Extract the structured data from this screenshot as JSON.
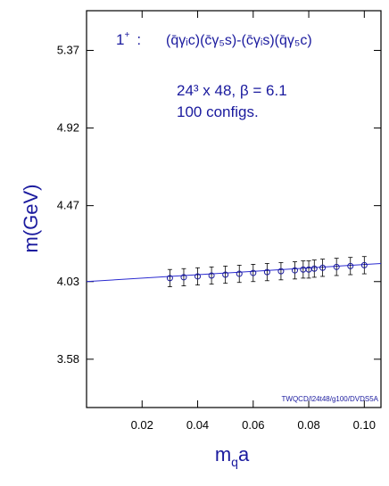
{
  "chart_data": {
    "type": "scatter",
    "title": "",
    "xlabel": "m",
    "xlabel_sub": "q",
    "xlabel_tail": "a",
    "ylabel": "m(GeV)",
    "xlim": [
      0.0,
      0.106
    ],
    "ylim": [
      3.3,
      5.6
    ],
    "x_ticks": [
      0.02,
      0.04,
      0.06,
      0.08,
      0.1
    ],
    "x_tick_labels": [
      "0.02",
      "0.04",
      "0.06",
      "0.08",
      "0.10"
    ],
    "y_ticks": [
      3.58,
      4.03,
      4.47,
      4.92,
      5.37
    ],
    "y_tick_labels": [
      "3.58",
      "4.03",
      "4.47",
      "4.92",
      "5.37"
    ],
    "annotations": {
      "state": "1",
      "state_sup": "+",
      "state_colon": ":",
      "operator": "(q̄γᵢc)(c̄γ₅s)-(c̄γᵢs)(q̄γ₅c)",
      "lattice_line": "24³ x 48, β = 6.1",
      "configs_line": "100 configs.",
      "credit": "TWQCD/l24t48/g100/DVDS5A"
    },
    "series": [
      {
        "x": [
          0.03,
          0.035,
          0.04,
          0.045,
          0.05,
          0.055,
          0.06,
          0.065,
          0.07,
          0.075,
          0.078,
          0.08,
          0.082,
          0.085,
          0.09,
          0.095,
          0.1
        ],
        "y": [
          4.05,
          4.055,
          4.06,
          4.065,
          4.07,
          4.075,
          4.08,
          4.085,
          4.09,
          4.095,
          4.1,
          4.1,
          4.105,
          4.11,
          4.115,
          4.12,
          4.125
        ],
        "yerr": [
          0.05,
          0.05,
          0.05,
          0.05,
          0.05,
          0.05,
          0.05,
          0.05,
          0.05,
          0.05,
          0.05,
          0.05,
          0.05,
          0.05,
          0.05,
          0.05,
          0.05
        ]
      }
    ],
    "fit_line": {
      "x": [
        0.0,
        0.106
      ],
      "y": [
        4.03,
        4.135
      ]
    },
    "colors": {
      "marker": "#1a1a9e",
      "fit": "#2a2ad0",
      "text": "#1a1a9e"
    },
    "grid": false
  }
}
